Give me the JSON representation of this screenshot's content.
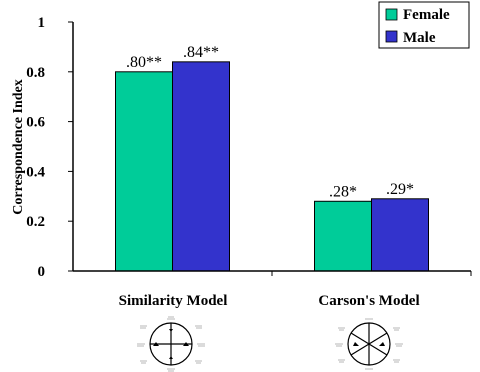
{
  "chart_data": {
    "type": "bar",
    "ylabel": "Correspondence Index",
    "xlabel": "",
    "ylim": [
      0,
      1
    ],
    "yticks": [
      0,
      0.2,
      0.4,
      0.6,
      0.8,
      1
    ],
    "ytick_labels": [
      "0",
      "0.2",
      "0.4",
      "0.6",
      "0.8",
      "1"
    ],
    "categories": [
      "Similarity Model",
      "Carson's Model"
    ],
    "series": [
      {
        "name": "Female",
        "values": [
          0.8,
          0.28
        ],
        "labels": [
          ".80**",
          ".28*"
        ],
        "color": "#00CC99"
      },
      {
        "name": "Male",
        "values": [
          0.84,
          0.29
        ],
        "labels": [
          ".84**",
          ".29*"
        ],
        "color": "#3333CC"
      }
    ],
    "legend_position": "top-right",
    "grid": false
  }
}
